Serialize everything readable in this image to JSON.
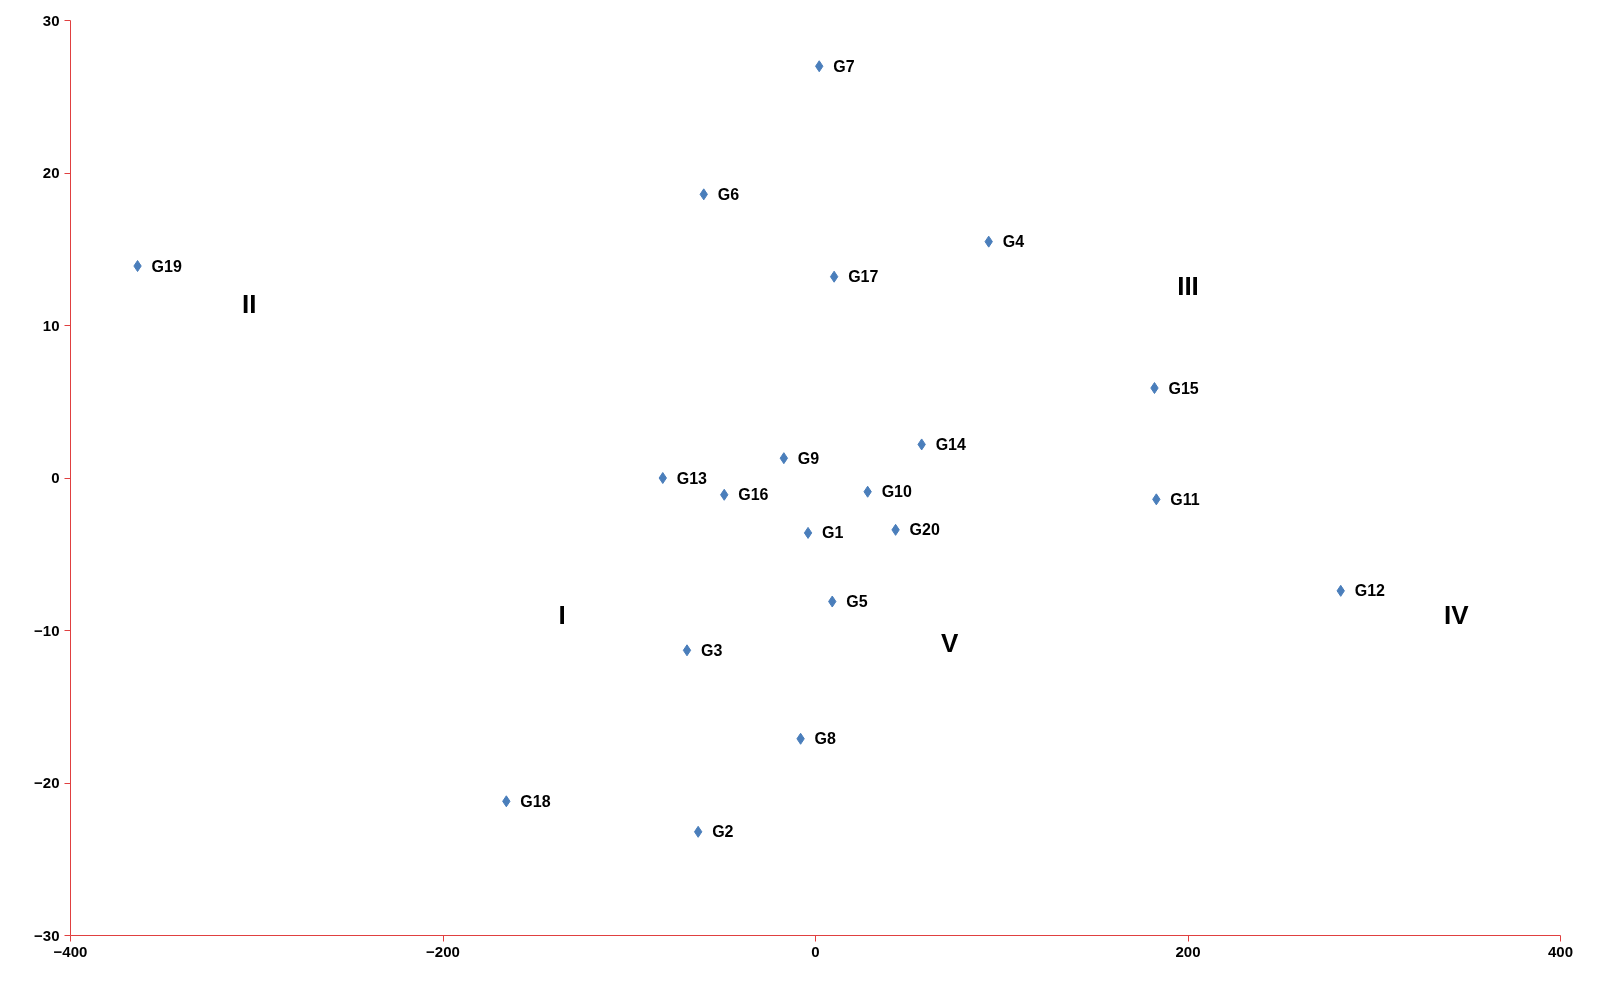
{
  "chart_data": {
    "type": "scatter",
    "marker": "diamond",
    "grid": false,
    "xlim": [
      -400,
      400
    ],
    "xticks": [
      -400,
      -200,
      0,
      200,
      400
    ],
    "ylim": [
      -30,
      30
    ],
    "yticks": [
      -30,
      -20,
      -10,
      0,
      10,
      20,
      30
    ],
    "x": [
      -4,
      -63,
      -69,
      93,
      9,
      -60,
      2,
      -8,
      -17,
      28,
      183,
      282,
      -82,
      57,
      182,
      -49,
      10,
      -166,
      -364,
      43
    ],
    "series": [
      {
        "color": "#4a7ebb",
        "values": [
          -3.6,
          -23.2,
          -11.3,
          15.5,
          -8.1,
          18.6,
          27,
          -17.1,
          1.3,
          -0.9,
          -1.4,
          -7.4,
          0,
          2.2,
          5.9,
          -1.1,
          13.2,
          -21.2,
          13.9,
          -3.4
        ]
      }
    ],
    "annotations": [
      {
        "text": "G1",
        "x": -4,
        "y": -3.6
      },
      {
        "text": "G2",
        "x": -63,
        "y": -23.2
      },
      {
        "text": "G3",
        "x": -69,
        "y": -11.3
      },
      {
        "text": "G4",
        "x": 93,
        "y": 15.5
      },
      {
        "text": "G5",
        "x": 9,
        "y": -8.1
      },
      {
        "text": "G6",
        "x": -60,
        "y": 18.6
      },
      {
        "text": "G7",
        "x": 2,
        "y": 27
      },
      {
        "text": "G8",
        "x": -8,
        "y": -17.1
      },
      {
        "text": "G9",
        "x": -17,
        "y": 1.3
      },
      {
        "text": "G10",
        "x": 28,
        "y": -0.9
      },
      {
        "text": "G11",
        "x": 183,
        "y": -1.4
      },
      {
        "text": "G12",
        "x": 282,
        "y": -7.4
      },
      {
        "text": "G13",
        "x": -82,
        "y": 0
      },
      {
        "text": "G14",
        "x": 57,
        "y": 2.2
      },
      {
        "text": "G15",
        "x": 182,
        "y": 5.9
      },
      {
        "text": "G16",
        "x": -49,
        "y": -1.1
      },
      {
        "text": "G17",
        "x": 10,
        "y": 13.2
      },
      {
        "text": "G18",
        "x": -166,
        "y": -21.2
      },
      {
        "text": "G19",
        "x": -364,
        "y": 13.9
      },
      {
        "text": "G20",
        "x": 43,
        "y": -3.4
      },
      "I",
      "II",
      "III",
      "IV",
      "V"
    ]
  }
}
